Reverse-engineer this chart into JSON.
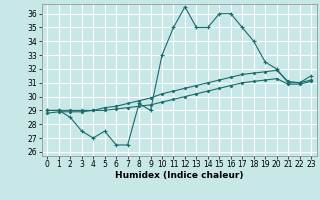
{
  "xlabel": "Humidex (Indice chaleur)",
  "background_color": "#c8e8e8",
  "grid_color": "#ffffff",
  "line_color": "#1a6b6b",
  "xlim": [
    -0.5,
    23.5
  ],
  "ylim": [
    25.7,
    36.7
  ],
  "yticks": [
    26,
    27,
    28,
    29,
    30,
    31,
    32,
    33,
    34,
    35,
    36
  ],
  "xticks": [
    0,
    1,
    2,
    3,
    4,
    5,
    6,
    7,
    8,
    9,
    10,
    11,
    12,
    13,
    14,
    15,
    16,
    17,
    18,
    19,
    20,
    21,
    22,
    23
  ],
  "s1_x": [
    0,
    1,
    2,
    3,
    4,
    5,
    6,
    7,
    8,
    9,
    10,
    11,
    12,
    13,
    14,
    15,
    16,
    17,
    18,
    19,
    20,
    21,
    22,
    23
  ],
  "s1_y": [
    29,
    29,
    28.5,
    27.5,
    27,
    27.5,
    26.5,
    26.5,
    29.5,
    29,
    33,
    35,
    36.5,
    35,
    35,
    36,
    36,
    35,
    34,
    32.5,
    32,
    31,
    31,
    31.5
  ],
  "s2_x": [
    0,
    1,
    2,
    3,
    4,
    5,
    6,
    7,
    8,
    9,
    10,
    11,
    12,
    13,
    14,
    15,
    16,
    17,
    18,
    19,
    20,
    21,
    22,
    23
  ],
  "s2_y": [
    29,
    29,
    29,
    29,
    29,
    29.2,
    29.3,
    29.5,
    29.7,
    29.9,
    30.2,
    30.4,
    30.6,
    30.8,
    31.0,
    31.2,
    31.4,
    31.6,
    31.7,
    31.8,
    31.9,
    31.1,
    31.0,
    31.2
  ],
  "s3_x": [
    0,
    1,
    2,
    3,
    4,
    5,
    6,
    7,
    8,
    9,
    10,
    11,
    12,
    13,
    14,
    15,
    16,
    17,
    18,
    19,
    20,
    21,
    22,
    23
  ],
  "s3_y": [
    28.8,
    28.9,
    28.9,
    28.9,
    29.0,
    29.0,
    29.1,
    29.2,
    29.3,
    29.4,
    29.6,
    29.8,
    30.0,
    30.2,
    30.4,
    30.6,
    30.8,
    31.0,
    31.1,
    31.2,
    31.3,
    30.9,
    30.9,
    31.1
  ]
}
